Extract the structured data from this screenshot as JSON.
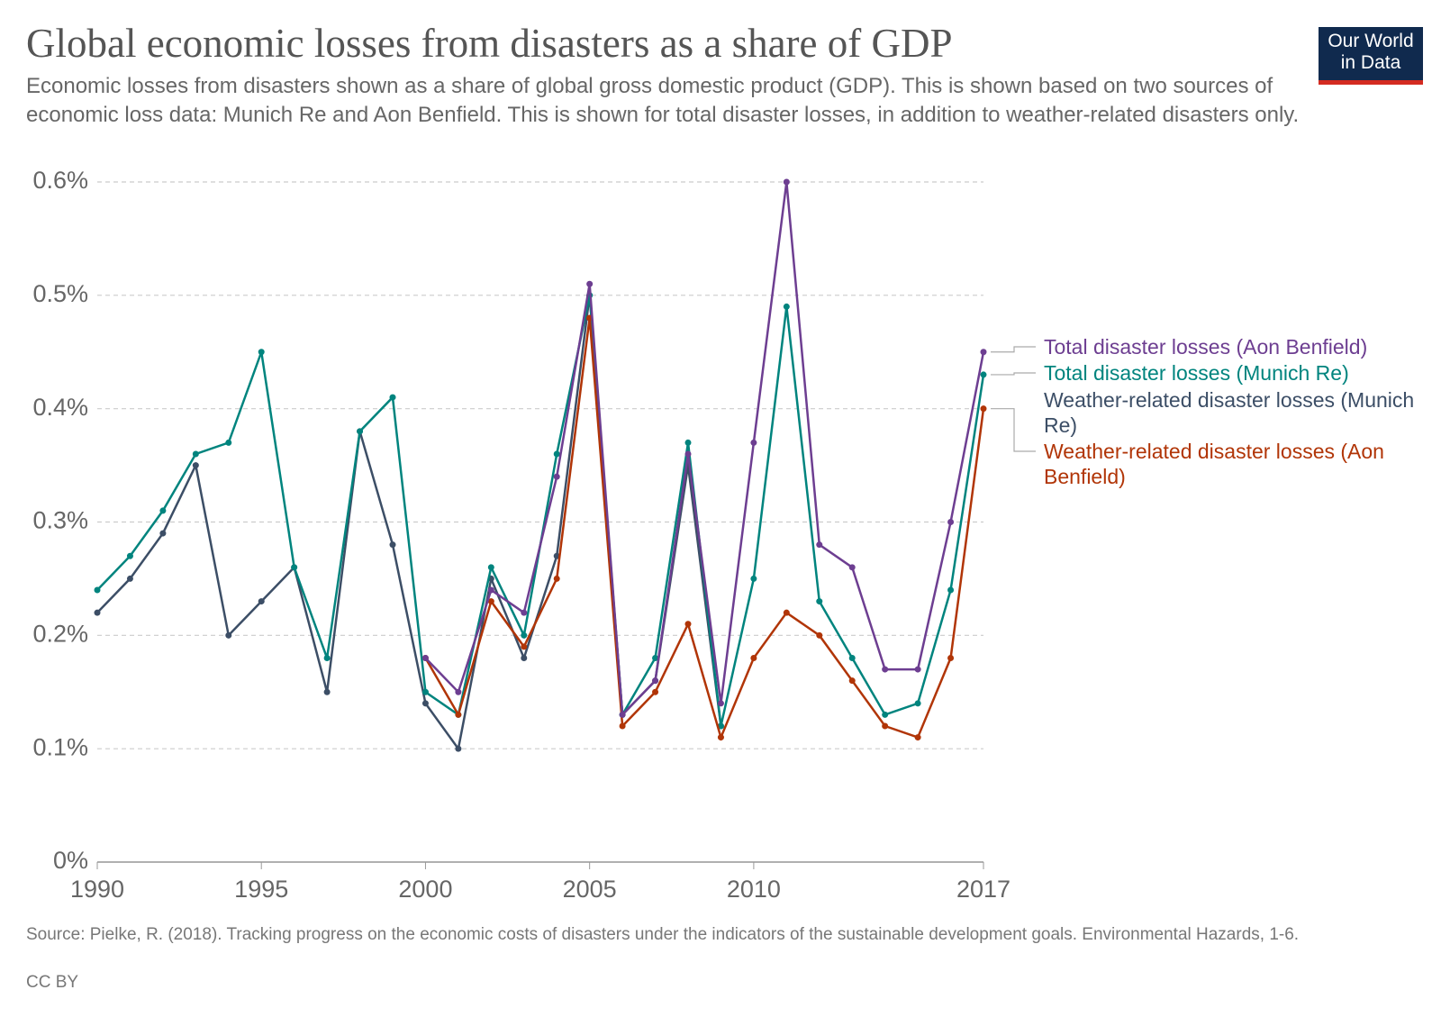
{
  "chart_data": {
    "type": "line",
    "title": "Global economic losses from disasters as a share of GDP",
    "subtitle": "Economic losses from disasters shown as a share of global gross domestic product (GDP). This is shown based on two sources of economic loss data: Munich Re and Aon Benfield. This is shown for total disaster losses, in addition to weather-related disasters only.",
    "logo": "Our World in Data",
    "source": "Source: Pielke, R. (2018). Tracking progress on the economic costs of disasters under the indicators of the sustainable development goals. Environmental Hazards, 1-6.",
    "license": "CC BY",
    "x": [
      1990,
      1991,
      1992,
      1993,
      1994,
      1995,
      1996,
      1997,
      1998,
      1999,
      2000,
      2001,
      2002,
      2003,
      2004,
      2005,
      2006,
      2007,
      2008,
      2009,
      2010,
      2011,
      2012,
      2013,
      2014,
      2015,
      2016,
      2017
    ],
    "xlim": [
      1990,
      2017
    ],
    "xticks": [
      1990,
      1995,
      2000,
      2005,
      2010,
      2017
    ],
    "ylim": [
      0,
      0.6
    ],
    "yticks": [
      {
        "value": 0,
        "label": "0%"
      },
      {
        "value": 0.1,
        "label": "0.1%"
      },
      {
        "value": 0.2,
        "label": "0.2%"
      },
      {
        "value": 0.3,
        "label": "0.3%"
      },
      {
        "value": 0.4,
        "label": "0.4%"
      },
      {
        "value": 0.5,
        "label": "0.5%"
      },
      {
        "value": 0.6,
        "label": "0.6%"
      }
    ],
    "grid": true,
    "series": [
      {
        "name": "Weather-related disaster losses (Munich Re)",
        "color": "#3c4e66",
        "values": [
          0.22,
          0.25,
          0.29,
          0.35,
          0.2,
          0.23,
          0.26,
          0.15,
          0.38,
          0.28,
          0.14,
          0.1,
          0.25,
          0.18,
          0.27,
          0.5,
          0.13,
          0.16,
          0.35,
          0.12,
          null,
          null,
          null,
          null,
          null,
          null,
          null,
          null
        ]
      },
      {
        "name": "Total disaster losses (Munich Re)",
        "color": "#00847e",
        "values": [
          0.24,
          0.27,
          0.31,
          0.36,
          0.37,
          0.45,
          0.26,
          0.18,
          0.38,
          0.41,
          0.15,
          0.13,
          0.26,
          0.2,
          0.36,
          0.5,
          0.13,
          0.18,
          0.37,
          0.12,
          0.25,
          0.49,
          0.23,
          0.18,
          0.13,
          0.14,
          0.24,
          0.43
        ]
      },
      {
        "name": "Weather-related disaster losses (Aon Benfield)",
        "color": "#b13507",
        "values": [
          null,
          null,
          null,
          null,
          null,
          null,
          null,
          null,
          null,
          null,
          0.18,
          0.13,
          0.23,
          0.19,
          0.25,
          0.48,
          0.12,
          0.15,
          0.21,
          0.11,
          0.18,
          0.22,
          0.2,
          0.16,
          0.12,
          0.11,
          0.18,
          0.4
        ]
      },
      {
        "name": "Total disaster losses (Aon Benfield)",
        "color": "#6d3e91",
        "values": [
          null,
          null,
          null,
          null,
          null,
          null,
          null,
          null,
          null,
          null,
          0.18,
          0.15,
          0.24,
          0.22,
          0.34,
          0.51,
          0.13,
          0.16,
          0.36,
          0.14,
          0.37,
          0.6,
          0.28,
          0.26,
          0.17,
          0.17,
          0.3,
          0.45
        ]
      }
    ]
  }
}
